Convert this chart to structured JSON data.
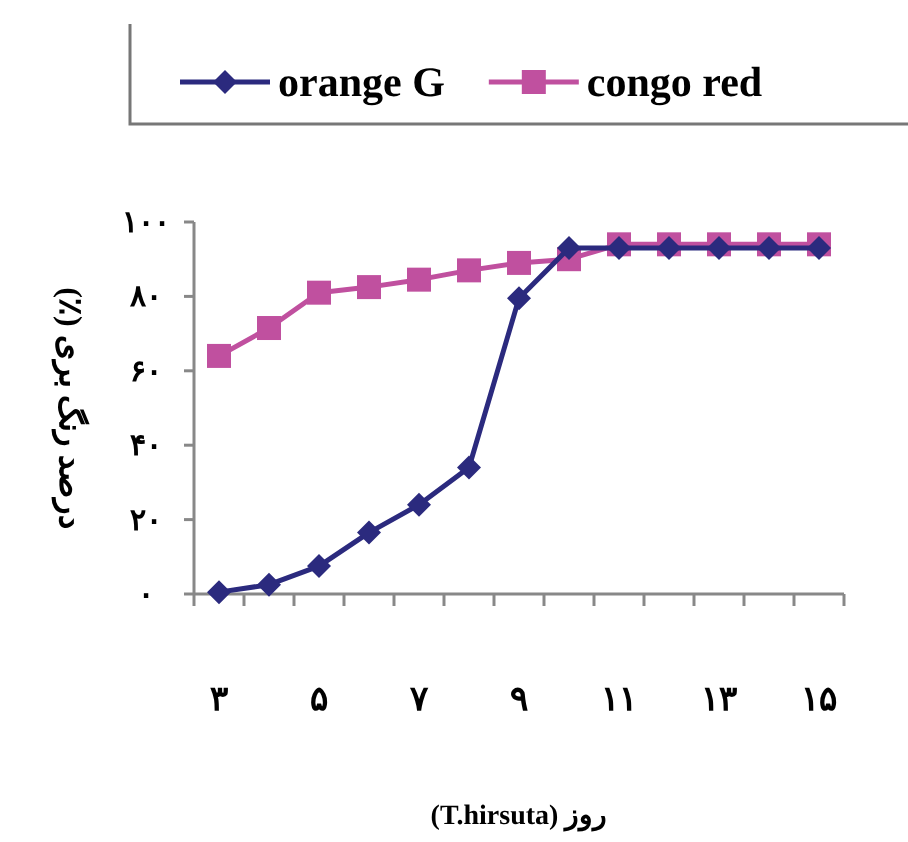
{
  "chart_data": {
    "type": "line",
    "xlabel": "روز (T.hirsuta)",
    "ylabel": "درصد رنگ بری (٪)",
    "categories": [
      "۳",
      null,
      "۵",
      null,
      "۷",
      null,
      "۹",
      null,
      "۱۱",
      null,
      "۱۳",
      null,
      "۱۵"
    ],
    "series": [
      {
        "name": "orange G",
        "color": "#2b2a7e",
        "marker": "diamond",
        "values": [
          0.5,
          2.5,
          7.5,
          16.5,
          24,
          34,
          79.5,
          93,
          93,
          93,
          93,
          93,
          93
        ]
      },
      {
        "name": "congo red",
        "color": "#c0509f",
        "marker": "square",
        "values": [
          64,
          71.5,
          81,
          82.5,
          84.5,
          87,
          89,
          90,
          94,
          94,
          94,
          94,
          94
        ]
      }
    ],
    "ylim": [
      0,
      100
    ],
    "yticks": [
      {
        "value": 0,
        "label": "۰"
      },
      {
        "value": 20,
        "label": "۲۰"
      },
      {
        "value": 40,
        "label": "۴۰"
      },
      {
        "value": 60,
        "label": "۶۰"
      },
      {
        "value": 80,
        "label": "۸۰"
      },
      {
        "value": 100,
        "label": "۱۰۰"
      }
    ],
    "grid": false,
    "legend": "top"
  }
}
